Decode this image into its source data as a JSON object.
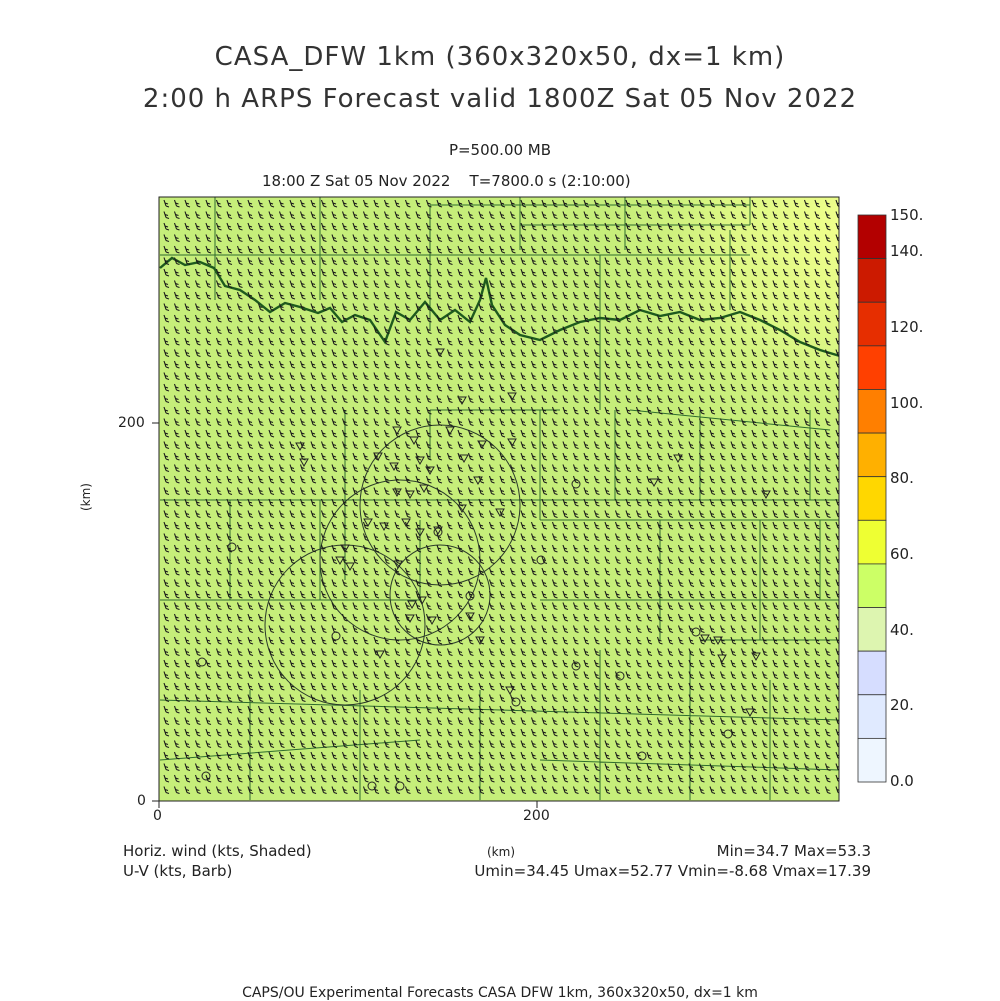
{
  "title_line1": "CASA_DFW 1km (360x320x50, dx=1 km)",
  "title_line2": "2:00 h ARPS Forecast valid 1800Z Sat 05 Nov 2022",
  "level": "P=500.00 MB",
  "time_line": "18:00 Z Sat 05 Nov 2022    T=7800.0 s (2:10:00)",
  "x_axis": {
    "label": "(km)",
    "ticks": [
      "0",
      "200"
    ]
  },
  "y_axis": {
    "label": "(km)",
    "ticks": [
      "0",
      "200"
    ]
  },
  "colorbar": {
    "labels": [
      "150.",
      "140.",
      "120.",
      "100.",
      "80.",
      "60.",
      "40.",
      "20.",
      "0.0"
    ],
    "colors": [
      "#b30000",
      "#cc1a00",
      "#e62e00",
      "#ff4000",
      "#ff7f00",
      "#ffb000",
      "#ffd700",
      "#eeff33",
      "#ccff66",
      "#ddf5b0",
      "#d6ddff",
      "#e0eaff",
      "#eef6ff"
    ]
  },
  "field_label": "Horiz. wind (kts, Shaded)",
  "vector_label": "U-V (kts, Barb)",
  "min_max": "Min=34.7 Max=53.3",
  "uv_stats": "Umin=34.45 Umax=52.77 Vmin=-8.68 Vmax=17.39",
  "credit": "CAPS/OU Experimental Forecasts  CASA DFW 1km, 360x320x50, dx=1 km",
  "field_colors": {
    "base": "#c6ee7a",
    "high": "#ebff8a",
    "barb": "#1a1a1a",
    "boundary": "#1e5a1e"
  }
}
